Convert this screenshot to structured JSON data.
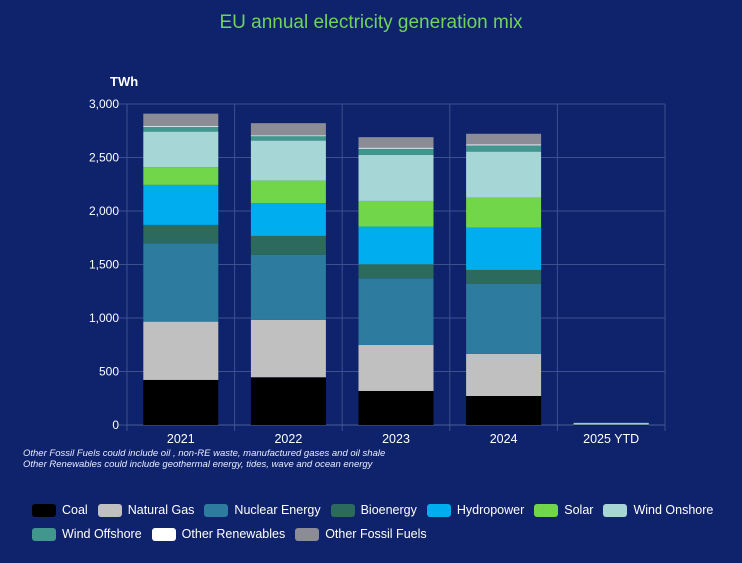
{
  "chart_data": {
    "type": "bar",
    "stacked": true,
    "title": "EU annual electricity generation mix",
    "ylabel": "TWh",
    "xlabel": "",
    "ylim": [
      0,
      3000
    ],
    "yticks": [
      0,
      500,
      1000,
      1500,
      2000,
      2500,
      3000
    ],
    "ytick_labels": [
      "0",
      "500",
      "1,000",
      "1,500",
      "2,000",
      "2,500",
      "3,000"
    ],
    "grid": true,
    "legend_position": "bottom",
    "categories": [
      "2021",
      "2022",
      "2023",
      "2024",
      "2025 YTD"
    ],
    "series": [
      {
        "name": "Coal",
        "color": "#000000",
        "values": [
          421,
          446,
          318,
          271,
          3
        ]
      },
      {
        "name": "Natural Gas",
        "color": "#c0c0c0",
        "values": [
          545,
          536,
          430,
          393,
          4
        ]
      },
      {
        "name": "Nuclear Energy",
        "color": "#2e7ba0",
        "values": [
          733,
          608,
          623,
          654,
          5
        ]
      },
      {
        "name": "Bioenergy",
        "color": "#2d6a5e",
        "values": [
          171,
          177,
          131,
          131,
          1
        ]
      },
      {
        "name": "Hydropower",
        "color": "#00aeef",
        "values": [
          374,
          306,
          352,
          396,
          3
        ]
      },
      {
        "name": "Solar",
        "color": "#72d64b",
        "values": [
          165,
          211,
          240,
          280,
          1
        ]
      },
      {
        "name": "Wind Onshore",
        "color": "#a6d6d6",
        "values": [
          333,
          374,
          430,
          430,
          3
        ]
      },
      {
        "name": "Wind Offshore",
        "color": "#41968e",
        "values": [
          47,
          44,
          58,
          58,
          0
        ]
      },
      {
        "name": "Other Renewables",
        "color": "#ffffff",
        "values": [
          5,
          5,
          10,
          10,
          0
        ]
      },
      {
        "name": "Other Fossil Fuels",
        "color": "#8c8c96",
        "values": [
          116,
          114,
          98,
          99,
          0
        ]
      }
    ]
  },
  "notes": [
    "Other Fossil Fuels could include oil , non-RE waste, manufactured gases and oil shale",
    "Other Renewables could include geothermal energy, tides, wave and ocean energy"
  ],
  "colors": {
    "background": "#0f226c",
    "title": "#6fd45a",
    "grid": "#3d4f8f"
  }
}
